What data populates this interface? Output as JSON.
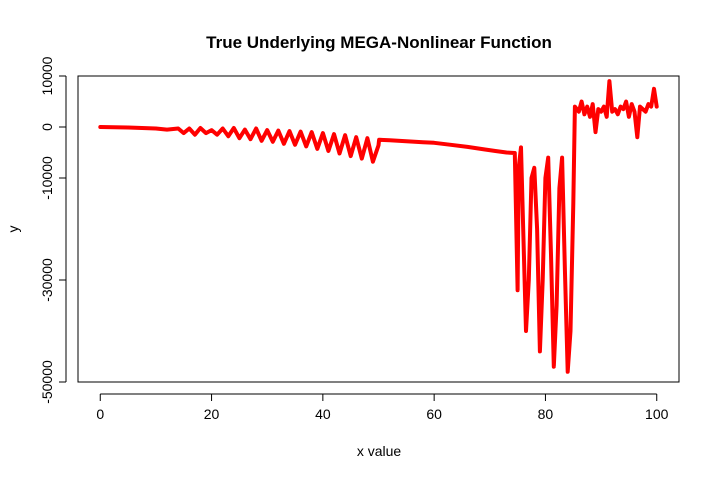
{
  "chart_data": {
    "type": "line",
    "title": "True Underlying MEGA-Nonlinear Function",
    "xlabel": "x value",
    "ylabel": "y",
    "xlim": [
      -4,
      104
    ],
    "ylim": [
      -50000,
      10000
    ],
    "x_ticks": [
      0,
      20,
      40,
      60,
      80,
      100
    ],
    "x_tick_labels": [
      "0",
      "20",
      "40",
      "60",
      "80",
      "100"
    ],
    "y_ticks": [
      -50000,
      -30000,
      -10000,
      0,
      10000
    ],
    "y_tick_labels": [
      "-50000",
      "-30000",
      "-10000",
      "0",
      "10000"
    ],
    "grid": false,
    "legend": "none",
    "series": [
      {
        "color": "#ff0000",
        "x": [
          0,
          5,
          10,
          12,
          14,
          15,
          16,
          17,
          18,
          19,
          20,
          21,
          22,
          23,
          24,
          25,
          26,
          27,
          28,
          29,
          30,
          31,
          32,
          33,
          34,
          35,
          36,
          37,
          38,
          39,
          40,
          41,
          42,
          43,
          44,
          45,
          46,
          47,
          48,
          49,
          50,
          50.1,
          52,
          55,
          58,
          60,
          63,
          66,
          69,
          71,
          73,
          74.5,
          75,
          75.2,
          75.6,
          76,
          76.5,
          77,
          77.5,
          78,
          78.5,
          79,
          79.5,
          80,
          80.5,
          81,
          81.5,
          82,
          82.5,
          83,
          83.5,
          84,
          84.5,
          85,
          85.3,
          86,
          86.5,
          87,
          87.5,
          88,
          88.5,
          89,
          89.5,
          90,
          90.5,
          91,
          91.5,
          92,
          92.5,
          93,
          93.5,
          94,
          94.5,
          95,
          95.5,
          96,
          96.5,
          97,
          97.5,
          98,
          98.5,
          99,
          99.5,
          100
        ],
        "y": [
          0,
          -100,
          -300,
          -500,
          -300,
          -1200,
          -300,
          -1500,
          -200,
          -1200,
          -600,
          -1500,
          -300,
          -1800,
          -200,
          -2200,
          -500,
          -2400,
          -300,
          -2700,
          -600,
          -2900,
          -700,
          -3300,
          -800,
          -3500,
          -900,
          -3800,
          -1000,
          -4300,
          -1200,
          -4700,
          -1400,
          -5200,
          -1600,
          -5700,
          -2000,
          -6200,
          -2200,
          -6800,
          -3600,
          -2500,
          -2600,
          -2800,
          -3000,
          -3100,
          -3500,
          -3900,
          -4400,
          -4700,
          -5000,
          -5100,
          -32000,
          -8000,
          -4000,
          -20000,
          -40000,
          -30000,
          -10000,
          -8000,
          -20000,
          -44000,
          -30000,
          -10000,
          -6000,
          -25000,
          -47000,
          -35000,
          -12000,
          -6000,
          -28000,
          -48000,
          -40000,
          -15000,
          4000,
          3000,
          5000,
          2500,
          4000,
          2000,
          4500,
          -1000,
          3500,
          3000,
          4000,
          2000,
          9000,
          3000,
          3500,
          2500,
          4000,
          3500,
          5000,
          2000,
          4500,
          3000,
          -2000,
          4000,
          3500,
          3000,
          4500,
          4000,
          7500,
          4000
        ]
      }
    ]
  }
}
